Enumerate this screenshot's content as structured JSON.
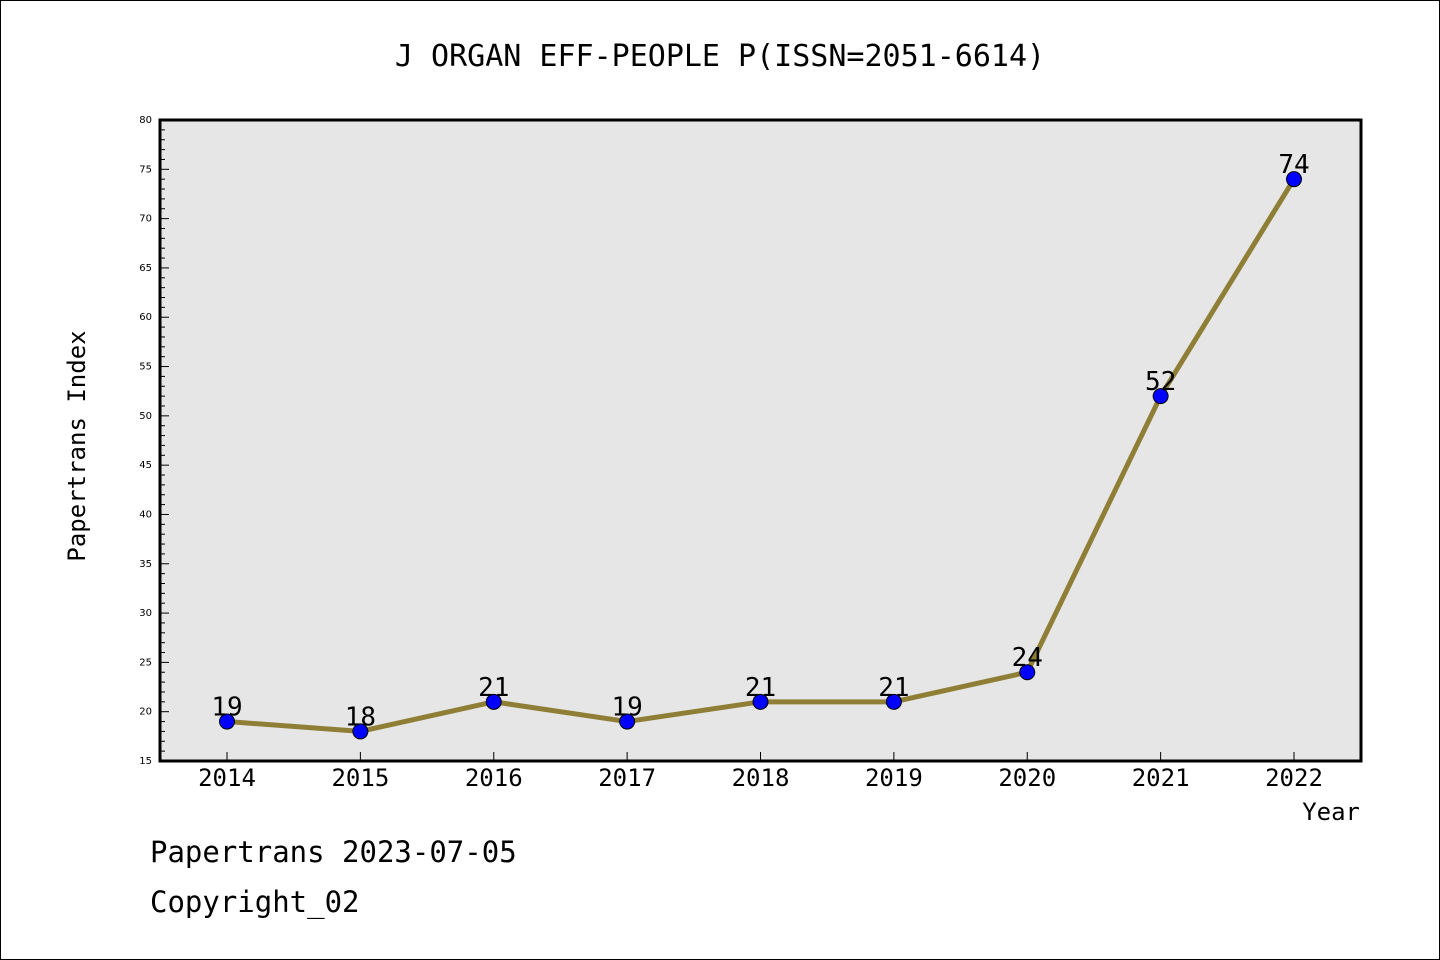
{
  "chart_data": {
    "type": "line",
    "title": "J ORGAN EFF-PEOPLE P(ISSN=2051-6614)",
    "xlabel": "Year",
    "ylabel": "Papertrans Index",
    "categories": [
      "2014",
      "2015",
      "2016",
      "2017",
      "2018",
      "2019",
      "2020",
      "2021",
      "2022"
    ],
    "values": [
      19,
      18,
      21,
      19,
      21,
      21,
      24,
      52,
      74
    ],
    "data_labels": [
      "19",
      "18",
      "21",
      "19",
      "21",
      "21",
      "24",
      "52",
      "74"
    ],
    "ylim": [
      15,
      80
    ],
    "yticks": [
      "15",
      "20",
      "25",
      "30",
      "35",
      "40",
      "45",
      "50",
      "55",
      "60",
      "65",
      "70",
      "75",
      "80"
    ],
    "grid": false,
    "line_color": "#8f7f36",
    "marker_color": "#0000ff",
    "plot_background": "#e6e6e6"
  },
  "footer": {
    "date_text": "Papertrans 2023-07-05",
    "copyright_text": "Copyright_02"
  }
}
